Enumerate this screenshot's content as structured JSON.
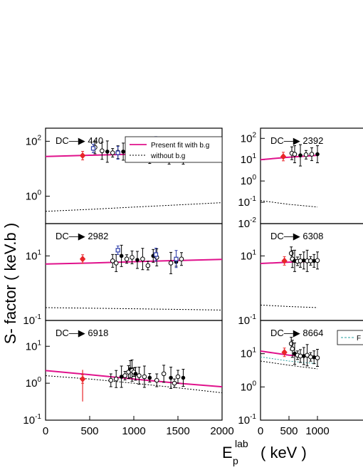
{
  "figure": {
    "ylabel": "S- factor ( keV.b )",
    "xlabel_main": "E",
    "xlabel_sub": "p",
    "xlabel_sup": "lab",
    "xlabel_unit": "( keV )"
  },
  "colors": {
    "fit": "#e0128c",
    "without_bg": "#000000",
    "expt_red": "#e8262a",
    "expt_blue": "#2a3aa8",
    "expt_black": "#000000",
    "legend_teal": "#2aa0a0"
  },
  "legend": {
    "fit_label": "Present fit with b.g",
    "nobg_label": "without b.g",
    "partial_label": "F"
  },
  "chart_data": [
    {
      "type": "scatter",
      "panel_label": "DC—▶ 440",
      "x_ticks": [],
      "y_scale": "log",
      "ylim": [
        0.1,
        300
      ],
      "xlim": [
        0,
        2000
      ],
      "y_ticks": [
        "10^2",
        "10^0"
      ],
      "series": [
        {
          "name": "Present fit with b.g",
          "x": [
            0,
            500,
            1000,
            1500,
            2000
          ],
          "y": [
            28,
            31,
            34,
            37,
            40
          ]
        },
        {
          "name": "without b.g",
          "x": [
            0,
            500,
            1000,
            1500,
            2000
          ],
          "y": [
            0.28,
            0.33,
            0.4,
            0.48,
            0.58
          ]
        },
        {
          "x": [
            420,
            560,
            640,
            700,
            760,
            820,
            880,
            940,
            1000,
            1060,
            1120,
            1180,
            1230,
            1280,
            1330,
            1400,
            1450,
            1500,
            1560
          ],
          "y": [
            30,
            60,
            45,
            42,
            38,
            40,
            42,
            44,
            48,
            52,
            42,
            38,
            40,
            44,
            42,
            36,
            38,
            40,
            30
          ]
        },
        {
          "x": [
            540,
            820,
            1020,
            1250,
            1480,
            2000
          ],
          "y": [
            55,
            38,
            44,
            60,
            70,
            40
          ]
        }
      ]
    },
    {
      "type": "scatter",
      "panel_label": "DC—▶ 2392",
      "y_scale": "log",
      "ylim": [
        0.01,
        300
      ],
      "xlim": [
        0,
        2000
      ],
      "y_ticks": [
        "10^2",
        "10^1",
        "10^0",
        "10^-1",
        "10^-2"
      ],
      "series": [
        {
          "x": [
            0,
            500,
            1000
          ],
          "y": [
            10,
            13,
            16
          ]
        },
        {
          "x": [
            0,
            500,
            1000
          ],
          "y": [
            0.12,
            0.08,
            0.06
          ]
        },
        {
          "x": [
            400,
            550,
            600,
            700,
            800,
            900,
            1000
          ],
          "y": [
            14,
            20,
            18,
            16,
            17,
            18,
            18
          ]
        }
      ]
    },
    {
      "type": "scatter",
      "panel_label": "DC—▶ 2982",
      "y_scale": "log",
      "ylim": [
        0.1,
        100
      ],
      "xlim": [
        0,
        2000
      ],
      "y_ticks": [
        "10^1",
        "10^-1"
      ],
      "series": [
        {
          "x": [
            0,
            500,
            1000,
            1500,
            2000
          ],
          "y": [
            5.6,
            6.0,
            6.6,
            7.2,
            7.8
          ]
        },
        {
          "x": [
            0,
            500,
            1000,
            1500,
            2000
          ],
          "y": [
            0.25,
            0.24,
            0.23,
            0.22,
            0.21
          ]
        },
        {
          "x": [
            420,
            760,
            800,
            860,
            920,
            980,
            1040,
            1100,
            1160,
            1220,
            1260,
            1420,
            1480,
            1540
          ],
          "y": [
            8,
            7,
            6,
            10,
            8,
            9,
            7.5,
            8,
            5,
            10,
            9,
            6,
            6.5,
            8
          ]
        },
        {
          "x": [
            820,
            1250,
            1480
          ],
          "y": [
            15,
            11,
            8
          ]
        }
      ]
    },
    {
      "type": "scatter",
      "panel_label": "DC—▶ 6308",
      "y_scale": "log",
      "ylim": [
        0.1,
        100
      ],
      "xlim": [
        0,
        2000
      ],
      "y_ticks": [
        "10^1",
        "10^-1"
      ],
      "series": [
        {
          "x": [
            0,
            500,
            1000
          ],
          "y": [
            5.8,
            6.4,
            6.8
          ]
        },
        {
          "x": [
            0,
            500,
            1000
          ],
          "y": [
            0.3,
            0.27,
            0.25
          ]
        },
        {
          "x": [
            420,
            540,
            560,
            600,
            650,
            700,
            760,
            820,
            880,
            940,
            1000
          ],
          "y": [
            7,
            12,
            8,
            7,
            6.8,
            7,
            7.2,
            7,
            7,
            7,
            7.2
          ]
        }
      ]
    },
    {
      "type": "scatter",
      "panel_label": "DC—▶ 6918",
      "y_scale": "log",
      "ylim": [
        0.1,
        50
      ],
      "xlim": [
        0,
        2000
      ],
      "y_ticks": [
        "10^1",
        "10^0",
        "10^-1"
      ],
      "x_ticks": [
        "0",
        "500",
        "1000",
        "1500",
        "2000"
      ],
      "series": [
        {
          "x": [
            0,
            500,
            1000,
            1500,
            2000
          ],
          "y": [
            2.2,
            1.7,
            1.3,
            1.0,
            0.8
          ]
        },
        {
          "x": [
            0,
            500,
            1000,
            1500,
            2000
          ],
          "y": [
            1.6,
            1.3,
            1.0,
            0.75,
            0.55
          ]
        },
        {
          "x": [
            420,
            740,
            800,
            860,
            900,
            940,
            960,
            980,
            1000,
            1020,
            1060,
            1120,
            1180,
            1260,
            1340,
            1420,
            1460,
            1500,
            1560
          ],
          "y": [
            1.3,
            1.2,
            1.3,
            1.5,
            1.6,
            2.0,
            2.4,
            2.2,
            2.0,
            1.8,
            1.6,
            1.5,
            1.4,
            1.2,
            1.8,
            1.4,
            1.0,
            1.5,
            1.4
          ]
        }
      ]
    },
    {
      "type": "scatter",
      "panel_label": "DC—▶ 8664",
      "y_scale": "log",
      "ylim": [
        0.1,
        100
      ],
      "xlim": [
        0,
        2000
      ],
      "y_ticks": [
        "10^1",
        "10^0",
        "10^-1"
      ],
      "x_ticks": [
        "0",
        "500",
        "1000"
      ],
      "series": [
        {
          "x": [
            0,
            500,
            1000
          ],
          "y": [
            12,
            9,
            8
          ]
        },
        {
          "x": [
            0,
            500,
            1000
          ],
          "y": [
            8,
            6,
            5
          ]
        },
        {
          "x": [
            0,
            500,
            1000
          ],
          "y": [
            6,
            4.5,
            3.5
          ]
        },
        {
          "x": [
            420,
            540,
            560,
            600,
            650,
            700,
            760,
            820,
            880,
            940,
            1000
          ],
          "y": [
            11,
            20,
            14,
            10,
            9,
            8.5,
            8.5,
            9,
            8,
            7.8,
            7.5
          ]
        }
      ]
    }
  ]
}
